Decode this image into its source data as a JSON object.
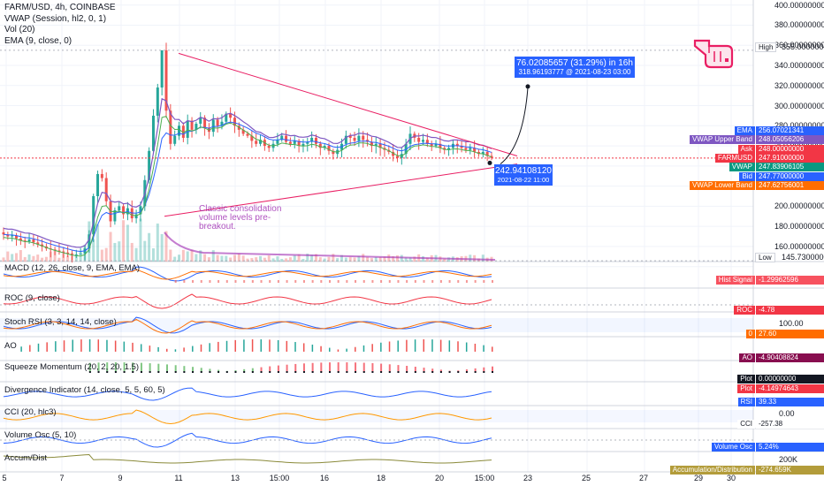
{
  "legend": {
    "title": "FARM/USD, 4h, COINBASE",
    "vwap": "VWAP (Session, hl2, 0, 1)",
    "vol": "Vol (20)",
    "ema": "EMA (9, close, 0)"
  },
  "price_axis": {
    "ticks": [
      "400.00000000",
      "380.00000000",
      "360.00000000",
      "340.00000000",
      "320.00000000",
      "300.00000000",
      "280.00000000",
      "260.00000000",
      "240.00000000",
      "220.00000000",
      "200.00000000",
      "180.00000000",
      "160.00000000"
    ],
    "high_label": "High",
    "high_value": "355.00000000",
    "low_label": "Low",
    "low_value": "145.73000000"
  },
  "price_tags": [
    {
      "label": "EMA",
      "value": "256.07021341",
      "color": "#2962ff"
    },
    {
      "label": "VWAP Upper Band",
      "value": "248.05056206",
      "color": "#7e57c2"
    },
    {
      "label": "Ask",
      "value": "248.00000000",
      "color": "#f23645"
    },
    {
      "label": "FARMUSD",
      "value": "247.91000000",
      "sub": "02:16:10",
      "color": "#f23645"
    },
    {
      "label": "VWAP",
      "value": "247.83906105",
      "color": "#089981"
    },
    {
      "label": "Bid",
      "value": "247.77000000",
      "color": "#2962ff"
    },
    {
      "label": "VWAP Lower Band",
      "value": "247.62756001",
      "color": "#ff6d00"
    }
  ],
  "callouts": {
    "target_main": "76.02085657 (31.29%) in 16h",
    "target_sub": "318.96193777 @ 2021-08-23 03:00",
    "entry_price": "242.94108120",
    "entry_time": "2021-08-22 11:00"
  },
  "annotation": [
    "Classic consolidation",
    "volume levels pre-",
    "breakout."
  ],
  "panels": [
    {
      "title": "MACD (12, 26, close, 9, EMA, EMA)",
      "tag": "Hist Signal",
      "tag_value": "-1.29962596",
      "tag_color": "#f7525f"
    },
    {
      "title": "ROC (9, close)",
      "tag": "ROC",
      "tag_value": "-4.78",
      "tag_color": "#f23645",
      "scale": ""
    },
    {
      "title": "Stoch RSI (3, 3, 14, 14, close)",
      "tag": "0",
      "tag_value": "27.60",
      "tag_color": "#ff6d00",
      "scale": "100.00"
    },
    {
      "title": "AO",
      "tag": "AO",
      "tag_value": "-4.90408824",
      "tag_color": "#880e4f"
    },
    {
      "title": "Squeeze Momentum (20, 2, 20, 1.5)",
      "tag": "Plot",
      "tag_value": "0.00000000",
      "tag_color": "#131722",
      "tag2": "Plot",
      "tag2_value": "-4.14974643",
      "tag2_color": "#f23645"
    },
    {
      "title": "Divergence Indicator (14, close, 5, 5, 60, 5)",
      "tag": "RSI",
      "tag_value": "39.33",
      "tag_color": "#2962ff"
    },
    {
      "title": "CCI (20, hlc3)",
      "tag": "CCI",
      "tag_value": "-257.38",
      "tag_color": "#ffffff",
      "scale": "0.00"
    },
    {
      "title": "Volume Osc (5, 10)",
      "tag": "Volume Osc",
      "tag_value": "5.24%",
      "tag_color": "#2962ff"
    },
    {
      "title": "Accum/Dist",
      "tag": "Accumulation/Distribution",
      "tag_value": "-274.659K",
      "tag_color": "#b39c3a",
      "scale": "200K"
    }
  ],
  "x_axis": [
    "5",
    "7",
    "9",
    "11",
    "13",
    "15:00",
    "16",
    "18",
    "20",
    "15:00",
    "23",
    "25",
    "27",
    "29",
    "15:00",
    "30"
  ],
  "colors": {
    "up": "#26a69a",
    "down": "#ef5350",
    "ema": "#2962ff",
    "vwap": "#7e57c2",
    "trend": "#e91e63",
    "accent": "#2962ff"
  },
  "icon": "pointing-hand-icon",
  "chart_data": {
    "type": "candlestick",
    "symbol": "FARM/USD",
    "timeframe": "4h",
    "ylim": [
      145,
      405
    ],
    "high": 355.0,
    "low": 145.73,
    "last": 247.91,
    "closes": [
      172,
      170,
      171,
      168,
      166,
      165,
      167,
      164,
      162,
      160,
      158,
      157,
      156,
      155,
      154,
      153,
      152,
      152,
      153,
      158,
      172,
      210,
      232,
      228,
      205,
      185,
      196,
      200,
      192,
      198,
      188,
      192,
      200,
      226,
      255,
      290,
      318,
      355,
      295,
      262,
      270,
      280,
      268,
      285,
      276,
      282,
      288,
      278,
      274,
      286,
      280,
      284,
      292,
      288,
      280,
      276,
      272,
      270,
      265,
      262,
      266,
      260,
      258,
      262,
      266,
      270,
      264,
      262,
      265,
      260,
      262,
      264,
      268,
      262,
      258,
      260,
      255,
      252,
      256,
      262,
      270,
      268,
      265,
      270,
      266,
      264,
      260,
      262,
      258,
      256,
      254,
      250,
      248,
      252,
      262,
      272,
      268,
      264,
      266,
      262,
      260,
      262,
      258,
      256,
      258,
      262,
      260,
      258,
      256,
      258,
      254,
      252,
      254,
      250,
      248
    ]
  }
}
